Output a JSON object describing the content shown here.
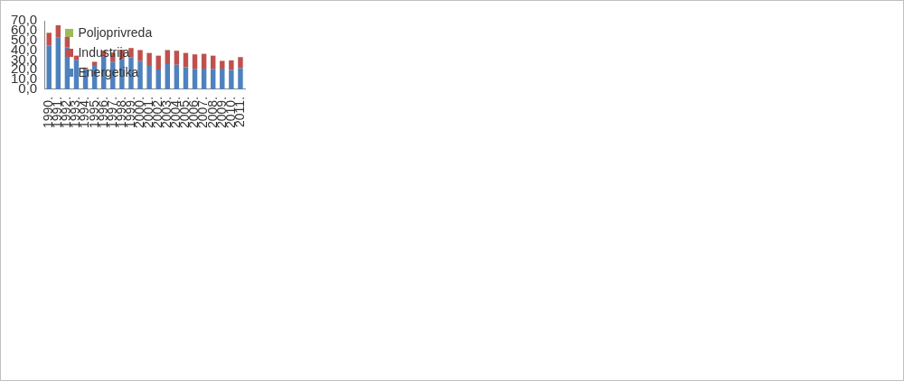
{
  "chart_data": {
    "type": "bar",
    "stacked": true,
    "grid": false,
    "legend": "upper left",
    "categories": [
      "1990.",
      "1991.",
      "1992.",
      "1993.",
      "1994.",
      "1995.",
      "1996.",
      "1997.",
      "1998.",
      "1999.",
      "2000.",
      "2001.",
      "2002.",
      "2003.",
      "2004.",
      "2005.",
      "2006.",
      "2007.",
      "2008.",
      "2009.",
      "2010.",
      "2011."
    ],
    "series": [
      {
        "name": "Energetika",
        "color": "#4f81bd",
        "values": [
          44.8,
          52.8,
          42.5,
          29.7,
          20.8,
          24.8,
          33.3,
          27.8,
          31.0,
          32.5,
          28.7,
          24.0,
          20.3,
          25.7,
          25.0,
          22.5,
          20.9,
          21.1,
          20.9,
          21.1,
          19.8,
          21.6
        ]
      },
      {
        "name": "Industrija",
        "color": "#c0504d",
        "values": [
          12.8,
          12.5,
          10.8,
          4.6,
          1.3,
          3.2,
          6.0,
          9.8,
          9.3,
          9.6,
          11.3,
          13.1,
          14.0,
          14.3,
          14.4,
          14.5,
          14.8,
          15.1,
          13.5,
          8.0,
          9.7,
          11.2
        ]
      },
      {
        "name": "Poljoprivreda",
        "color": "#9bbb59",
        "values": [
          0.4,
          0.2,
          0.2,
          0.2,
          0.2,
          0.2,
          0.2,
          0.2,
          0.2,
          0.2,
          0.2,
          0.2,
          0.2,
          0.2,
          0.2,
          0.2,
          0.2,
          0.2,
          0.2,
          0.2,
          0.2,
          0.2
        ]
      }
    ],
    "ylim": [
      0,
      70
    ],
    "yticks": [
      {
        "value": 0,
        "label": "0,0"
      },
      {
        "value": 10,
        "label": "10,0"
      },
      {
        "value": 20,
        "label": "20,0"
      },
      {
        "value": 30,
        "label": "30,0"
      },
      {
        "value": 40,
        "label": "40,0"
      },
      {
        "value": 50,
        "label": "50,0"
      },
      {
        "value": 60,
        "label": "60,0"
      },
      {
        "value": 70,
        "label": "70,0"
      }
    ]
  }
}
